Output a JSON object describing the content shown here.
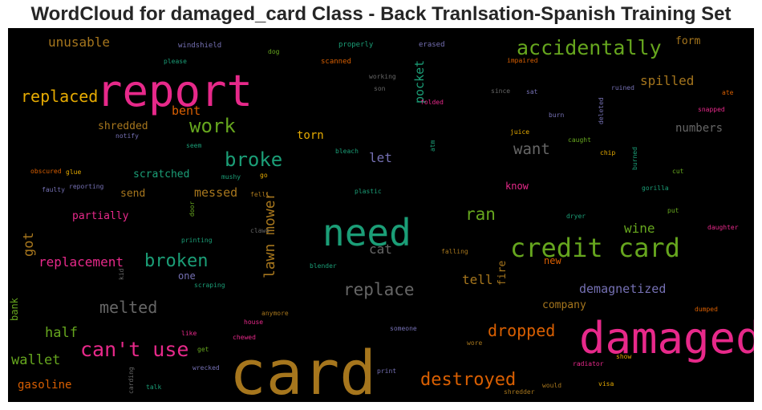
{
  "title": "WordCloud for damaged_card Class - Back Tranlsation-Spanish Training Set",
  "words": [
    {
      "text": "card",
      "color": "#a6761d"
    },
    {
      "text": "damaged",
      "color": "#e7298a"
    },
    {
      "text": "report",
      "color": "#e7298a"
    },
    {
      "text": "need",
      "color": "#1b9e77"
    },
    {
      "text": "credit card",
      "color": "#66a61e"
    },
    {
      "text": "accidentally",
      "color": "#66a61e"
    },
    {
      "text": "can't use",
      "color": "#e7298a"
    },
    {
      "text": "destroyed",
      "color": "#d95f02"
    },
    {
      "text": "work",
      "color": "#66a61e"
    },
    {
      "text": "broke",
      "color": "#1b9e77"
    },
    {
      "text": "broken",
      "color": "#1b9e77"
    },
    {
      "text": "replace",
      "color": "#666666"
    },
    {
      "text": "melted",
      "color": "#666666"
    },
    {
      "text": "replaced",
      "color": "#e6ab02"
    },
    {
      "text": "dropped",
      "color": "#d95f02"
    },
    {
      "text": "ran",
      "color": "#66a61e"
    },
    {
      "text": "want",
      "color": "#666666"
    },
    {
      "text": "lawn mower",
      "color": "#a6761d"
    },
    {
      "text": "replacement",
      "color": "#e7298a"
    },
    {
      "text": "half",
      "color": "#66a61e"
    },
    {
      "text": "wallet",
      "color": "#66a61e"
    },
    {
      "text": "spilled",
      "color": "#a6761d"
    },
    {
      "text": "unusable",
      "color": "#a6761d"
    },
    {
      "text": "got",
      "color": "#a6761d"
    },
    {
      "text": "pocket",
      "color": "#1b9e77"
    },
    {
      "text": "demagnetized",
      "color": "#7570b3"
    },
    {
      "text": "tell",
      "color": "#a6761d"
    },
    {
      "text": "wine",
      "color": "#66a61e"
    },
    {
      "text": "cat",
      "color": "#666666"
    },
    {
      "text": "let",
      "color": "#7570b3"
    },
    {
      "text": "messed",
      "color": "#a6761d"
    },
    {
      "text": "bent",
      "color": "#d95f02"
    },
    {
      "text": "numbers",
      "color": "#666666"
    },
    {
      "text": "gasoline",
      "color": "#d95f02"
    },
    {
      "text": "shredded",
      "color": "#a6761d"
    },
    {
      "text": "torn",
      "color": "#e6ab02"
    },
    {
      "text": "partially",
      "color": "#e7298a"
    },
    {
      "text": "scratched",
      "color": "#1b9e77"
    },
    {
      "text": "company",
      "color": "#a6761d"
    },
    {
      "text": "form",
      "color": "#a6761d"
    },
    {
      "text": "fire",
      "color": "#a6761d"
    },
    {
      "text": "send",
      "color": "#a6761d"
    },
    {
      "text": "bank",
      "color": "#66a61e"
    },
    {
      "text": "know",
      "color": "#e7298a"
    },
    {
      "text": "new",
      "color": "#d95f02"
    },
    {
      "text": "one",
      "color": "#7570b3"
    },
    {
      "text": "windshield",
      "color": "#7570b3"
    },
    {
      "text": "dog",
      "color": "#66a61e"
    },
    {
      "text": "properly",
      "color": "#1b9e77"
    },
    {
      "text": "erased",
      "color": "#7570b3"
    },
    {
      "text": "please",
      "color": "#1b9e77"
    },
    {
      "text": "scanned",
      "color": "#d95f02"
    },
    {
      "text": "impaired",
      "color": "#d95f02"
    },
    {
      "text": "working",
      "color": "#666666"
    },
    {
      "text": "son",
      "color": "#666666"
    },
    {
      "text": "since",
      "color": "#666666"
    },
    {
      "text": "sat",
      "color": "#7570b3"
    },
    {
      "text": "ruined",
      "color": "#7570b3"
    },
    {
      "text": "ate",
      "color": "#d95f02"
    },
    {
      "text": "folded",
      "color": "#e7298a"
    },
    {
      "text": "deleted",
      "color": "#7570b3"
    },
    {
      "text": "snapped",
      "color": "#e7298a"
    },
    {
      "text": "burn",
      "color": "#7570b3"
    },
    {
      "text": "notify",
      "color": "#7570b3"
    },
    {
      "text": "juice",
      "color": "#e6ab02"
    },
    {
      "text": "caught",
      "color": "#66a61e"
    },
    {
      "text": "seem",
      "color": "#1b9e77"
    },
    {
      "text": "bleach",
      "color": "#1b9e77"
    },
    {
      "text": "atm",
      "color": "#1b9e77"
    },
    {
      "text": "chip",
      "color": "#e6ab02"
    },
    {
      "text": "burned",
      "color": "#1b9e77"
    },
    {
      "text": "obscured",
      "color": "#d95f02"
    },
    {
      "text": "glue",
      "color": "#e6ab02"
    },
    {
      "text": "mushy",
      "color": "#1b9e77"
    },
    {
      "text": "go",
      "color": "#e6ab02"
    },
    {
      "text": "cut",
      "color": "#66a61e"
    },
    {
      "text": "faulty",
      "color": "#7570b3"
    },
    {
      "text": "reporting",
      "color": "#7570b3"
    },
    {
      "text": "fell",
      "color": "#a6761d"
    },
    {
      "text": "plastic",
      "color": "#1b9e77"
    },
    {
      "text": "gorilla",
      "color": "#1b9e77"
    },
    {
      "text": "door",
      "color": "#66a61e"
    },
    {
      "text": "dryer",
      "color": "#1b9e77"
    },
    {
      "text": "put",
      "color": "#66a61e"
    },
    {
      "text": "claws",
      "color": "#666666"
    },
    {
      "text": "daughter",
      "color": "#e7298a"
    },
    {
      "text": "printing",
      "color": "#1b9e77"
    },
    {
      "text": "falling",
      "color": "#a6761d"
    },
    {
      "text": "blender",
      "color": "#1b9e77"
    },
    {
      "text": "kid",
      "color": "#666666"
    },
    {
      "text": "scraping",
      "color": "#1b9e77"
    },
    {
      "text": "anymore",
      "color": "#a6761d"
    },
    {
      "text": "house",
      "color": "#e7298a"
    },
    {
      "text": "dumped",
      "color": "#d95f02"
    },
    {
      "text": "someone",
      "color": "#7570b3"
    },
    {
      "text": "like",
      "color": "#e7298a"
    },
    {
      "text": "chewed",
      "color": "#e7298a"
    },
    {
      "text": "wore",
      "color": "#a6761d"
    },
    {
      "text": "get",
      "color": "#66a61e"
    },
    {
      "text": "show",
      "color": "#e6ab02"
    },
    {
      "text": "wrecked",
      "color": "#7570b3"
    },
    {
      "text": "radiator",
      "color": "#e7298a"
    },
    {
      "text": "print",
      "color": "#7570b3"
    },
    {
      "text": "carding",
      "color": "#666666"
    },
    {
      "text": "talk",
      "color": "#1b9e77"
    },
    {
      "text": "would",
      "color": "#a6761d"
    },
    {
      "text": "visa",
      "color": "#e6ab02"
    },
    {
      "text": "shredder",
      "color": "#a6761d"
    }
  ]
}
